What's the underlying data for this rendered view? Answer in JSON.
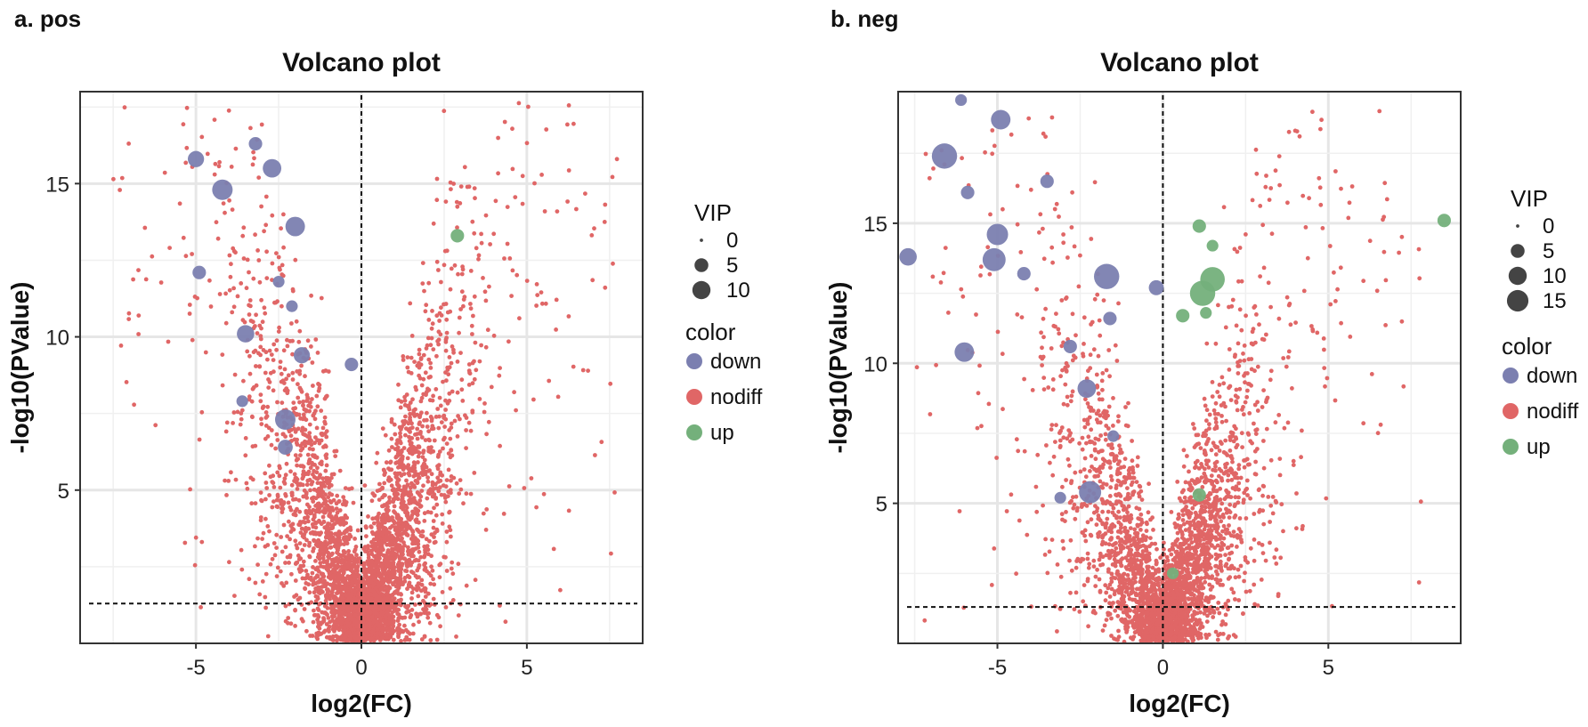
{
  "panels": {
    "a": {
      "label": "a. pos"
    },
    "b": {
      "label": "b. neg"
    }
  },
  "chart_data": [
    {
      "type": "scatter",
      "subtype": "volcano",
      "panel": "a. pos",
      "title": "Volcano plot",
      "xlabel": "log2(FC)",
      "ylabel": "-log10(PValue)",
      "xlim": [
        -8.5,
        8.5
      ],
      "ylim": [
        0,
        18
      ],
      "xticks": [
        -5,
        0,
        5
      ],
      "yticks": [
        5,
        10,
        15
      ],
      "grid": true,
      "vline_x": 0,
      "hline_y": 1.3,
      "colors": {
        "down": "#7b7fb0",
        "nodiff": "#e06666",
        "up": "#74b07b"
      },
      "legend": {
        "size_title": "VIP",
        "size_levels": [
          0,
          5,
          10
        ],
        "color_title": "color",
        "color_levels": [
          "down",
          "nodiff",
          "up"
        ]
      },
      "down_points": [
        {
          "x": -5.0,
          "y": 15.8,
          "vip": 5
        },
        {
          "x": -4.2,
          "y": 14.8,
          "vip": 9
        },
        {
          "x": -2.7,
          "y": 15.5,
          "vip": 7
        },
        {
          "x": -3.2,
          "y": 16.3,
          "vip": 3
        },
        {
          "x": -2.0,
          "y": 13.6,
          "vip": 8
        },
        {
          "x": -4.9,
          "y": 12.1,
          "vip": 3
        },
        {
          "x": -3.5,
          "y": 10.1,
          "vip": 6
        },
        {
          "x": -1.8,
          "y": 9.4,
          "vip": 5
        },
        {
          "x": -0.3,
          "y": 9.1,
          "vip": 3
        },
        {
          "x": -2.3,
          "y": 7.3,
          "vip": 9
        },
        {
          "x": -2.3,
          "y": 6.4,
          "vip": 4
        },
        {
          "x": -3.6,
          "y": 7.9,
          "vip": 2
        },
        {
          "x": -2.1,
          "y": 11.0,
          "vip": 2
        },
        {
          "x": -2.5,
          "y": 11.8,
          "vip": 2
        }
      ],
      "up_points": [
        {
          "x": 2.9,
          "y": 13.3,
          "vip": 3
        }
      ]
    },
    {
      "type": "scatter",
      "subtype": "volcano",
      "panel": "b. neg",
      "title": "Volcano plot",
      "xlabel": "log2(FC)",
      "ylabel": "-log10(PValue)",
      "xlim": [
        -8.0,
        9.0
      ],
      "ylim": [
        0,
        19.7
      ],
      "xticks": [
        -5,
        0,
        5
      ],
      "yticks": [
        5,
        10,
        15
      ],
      "grid": true,
      "vline_x": 0,
      "hline_y": 1.3,
      "colors": {
        "down": "#7b7fb0",
        "nodiff": "#e06666",
        "up": "#74b07b"
      },
      "legend": {
        "size_title": "VIP",
        "size_levels": [
          0,
          5,
          10,
          15
        ],
        "color_title": "color",
        "color_levels": [
          "down",
          "nodiff",
          "up"
        ]
      },
      "down_points": [
        {
          "x": -6.6,
          "y": 17.4,
          "vip": 15
        },
        {
          "x": -4.9,
          "y": 18.7,
          "vip": 8
        },
        {
          "x": -6.1,
          "y": 19.4,
          "vip": 2
        },
        {
          "x": -5.0,
          "y": 14.6,
          "vip": 10
        },
        {
          "x": -5.1,
          "y": 13.7,
          "vip": 12
        },
        {
          "x": -7.7,
          "y": 13.8,
          "vip": 6
        },
        {
          "x": -1.7,
          "y": 13.1,
          "vip": 15
        },
        {
          "x": -0.2,
          "y": 12.7,
          "vip": 4
        },
        {
          "x": -6.0,
          "y": 10.4,
          "vip": 8
        },
        {
          "x": -2.3,
          "y": 9.1,
          "vip": 7
        },
        {
          "x": -2.2,
          "y": 5.4,
          "vip": 11
        },
        {
          "x": -3.1,
          "y": 5.2,
          "vip": 2
        },
        {
          "x": -5.9,
          "y": 16.1,
          "vip": 3
        },
        {
          "x": -3.5,
          "y": 16.5,
          "vip": 3
        },
        {
          "x": -4.2,
          "y": 13.2,
          "vip": 3
        },
        {
          "x": -1.6,
          "y": 11.6,
          "vip": 3
        },
        {
          "x": -2.8,
          "y": 10.6,
          "vip": 3
        },
        {
          "x": -1.5,
          "y": 7.4,
          "vip": 2
        }
      ],
      "up_points": [
        {
          "x": 1.2,
          "y": 12.5,
          "vip": 15
        },
        {
          "x": 1.5,
          "y": 13.0,
          "vip": 14
        },
        {
          "x": 1.1,
          "y": 14.9,
          "vip": 3
        },
        {
          "x": 1.5,
          "y": 14.2,
          "vip": 2
        },
        {
          "x": 0.6,
          "y": 11.7,
          "vip": 3
        },
        {
          "x": 1.3,
          "y": 11.8,
          "vip": 2
        },
        {
          "x": 1.1,
          "y": 5.3,
          "vip": 3
        },
        {
          "x": 8.5,
          "y": 15.1,
          "vip": 3
        },
        {
          "x": 0.3,
          "y": 2.5,
          "vip": 2
        }
      ]
    }
  ]
}
